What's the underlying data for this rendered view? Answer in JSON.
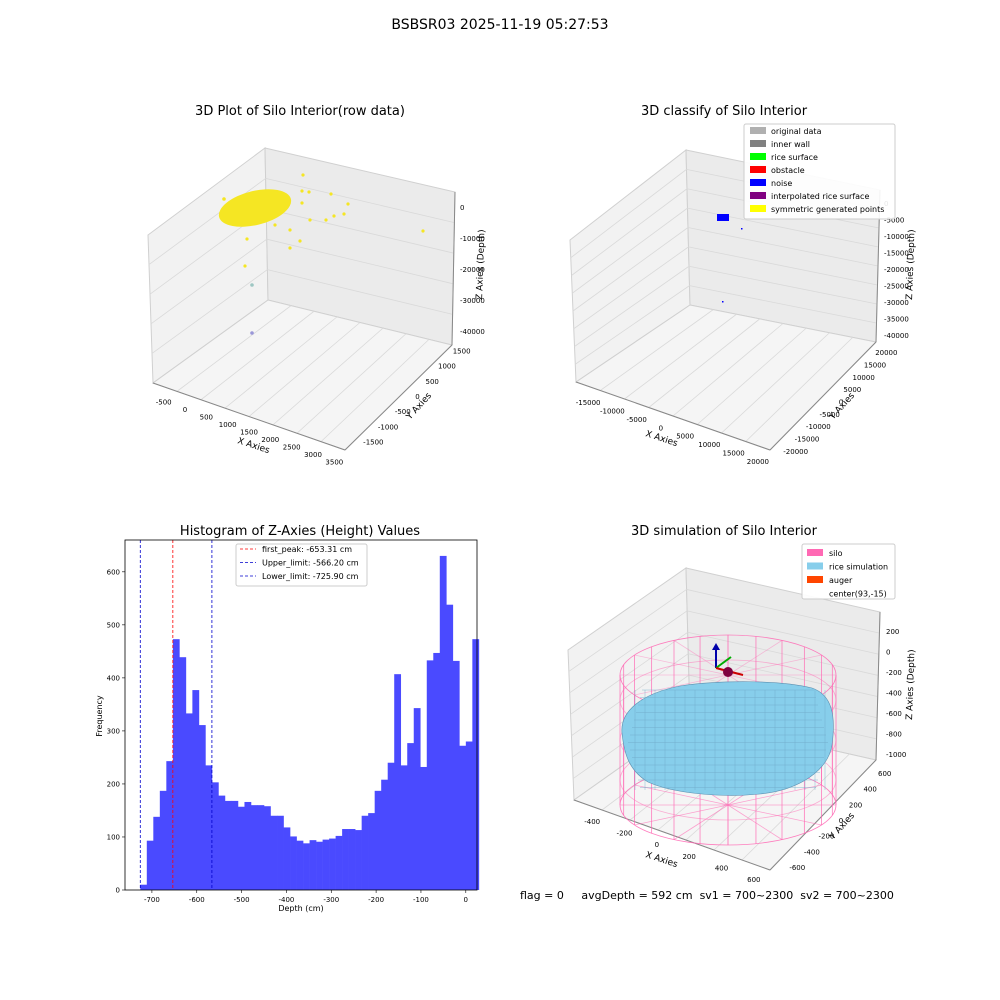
{
  "suptitle": "BSBSR03 2025-11-19 05:27:53",
  "footer": {
    "flag": "flag = 0",
    "avg_depth": "avgDepth = 592 cm",
    "sv1": "sv1 = 700~2300",
    "sv2": "sv2 = 700~2300"
  },
  "colors": {
    "hist_bar": "#4a4aff",
    "first_peak": "#ff0000",
    "limits": "#0000cc",
    "yellow": "#f5e623",
    "pink": "#ff69b4",
    "skyblue": "#87ceeb",
    "orange": "#ff4500",
    "pane": "#f2f2f2",
    "grid": "#d9d9d9"
  },
  "chart_data": [
    {
      "type": "scatter",
      "title": "3D Plot of Silo Interior(row data)",
      "xlabel": "X Axies",
      "ylabel": "Y Axies",
      "zlabel": "Z Axies (Depth)",
      "x_ticks": [
        "-500",
        "0",
        "500",
        "1000",
        "1500",
        "2000",
        "2500",
        "3000",
        "3500"
      ],
      "y_ticks": [
        "-1500",
        "-1000",
        "-500",
        "0",
        "500",
        "1000",
        "1500"
      ],
      "z_ticks": [
        "0",
        "-10000",
        "-20000",
        "-30000",
        "-40000"
      ],
      "xlim": [
        -700,
        3500
      ],
      "ylim": [
        -1700,
        1700
      ],
      "zlim": [
        -42000,
        2000
      ],
      "points_color": "#f5e623",
      "description_points": "dense yellow cluster near x≈0, y≈0, z≈-600 plus scattered outliers"
    },
    {
      "type": "scatter",
      "title": "3D classify of Silo Interior",
      "xlabel": "X Axies",
      "ylabel": "Y Axies",
      "zlabel": "Z Axies (Depth)",
      "x_ticks": [
        "-15000",
        "-10000",
        "-5000",
        "0",
        "5000",
        "10000",
        "15000",
        "20000"
      ],
      "y_ticks": [
        "-20000",
        "-15000",
        "-10000",
        "-5000",
        "0",
        "5000",
        "10000",
        "15000",
        "20000"
      ],
      "z_ticks": [
        "0",
        "-5000",
        "-10000",
        "-15000",
        "-20000",
        "-25000",
        "-30000",
        "-35000",
        "-40000"
      ],
      "legend": [
        {
          "label": "original data",
          "color": "#b0b0b0"
        },
        {
          "label": "inner wall",
          "color": "#808080"
        },
        {
          "label": "rice surface",
          "color": "#00ff00"
        },
        {
          "label": "obstacle",
          "color": "#ff0000"
        },
        {
          "label": "noise",
          "color": "#0000ff"
        },
        {
          "label": "interpolated rice surface",
          "color": "#800080"
        },
        {
          "label": "symmetric generated points",
          "color": "#ffff00"
        }
      ]
    },
    {
      "type": "bar",
      "title": "Histogram of Z-Axies (Height) Values",
      "xlabel": "Depth (cm)",
      "ylabel": "Frequency",
      "xlim": [
        -760,
        25
      ],
      "ylim": [
        0,
        660
      ],
      "x_ticks": [
        -700,
        -600,
        -500,
        -400,
        -300,
        -200,
        -100,
        0
      ],
      "y_ticks": [
        0,
        100,
        200,
        300,
        400,
        500,
        600
      ],
      "bin_start": -725.9,
      "bin_width": 14.52,
      "values": [
        10,
        93,
        138,
        187,
        243,
        473,
        439,
        333,
        377,
        311,
        235,
        203,
        178,
        168,
        168,
        157,
        166,
        160,
        160,
        158,
        140,
        140,
        118,
        101,
        93,
        88,
        94,
        91,
        95,
        97,
        102,
        115,
        115,
        113,
        140,
        145,
        187,
        208,
        240,
        407,
        235,
        277,
        343,
        232,
        433,
        447,
        630,
        538,
        432,
        272,
        280,
        473
      ],
      "lines": [
        {
          "name": "first_peak: -653.31 cm",
          "x": -653.31,
          "color": "#ff0000"
        },
        {
          "name": "Upper_limit: -566.20 cm",
          "x": -566.2,
          "color": "#0000cc"
        },
        {
          "name": "Lower_limit: -725.90 cm",
          "x": -725.9,
          "color": "#0000cc"
        }
      ]
    },
    {
      "type": "surface",
      "title": "3D simulation of Silo Interior",
      "xlabel": "X Axies",
      "ylabel": "Y Axies",
      "zlabel": "Z Axies (Depth)",
      "x_ticks": [
        "-400",
        "-200",
        "0",
        "200",
        "400",
        "600"
      ],
      "y_ticks": [
        "-600",
        "-400",
        "-200",
        "0",
        "200",
        "400",
        "600"
      ],
      "z_ticks": [
        "200",
        "0",
        "-200",
        "-400",
        "-600",
        "-800",
        "-1000"
      ],
      "legend": [
        {
          "label": "silo",
          "color": "#ff69b4"
        },
        {
          "label": "rice simulation",
          "color": "#87ceeb"
        },
        {
          "label": "auger",
          "color": "#ff4500"
        },
        {
          "label": "center(93,-15)",
          "color": ""
        }
      ]
    }
  ]
}
